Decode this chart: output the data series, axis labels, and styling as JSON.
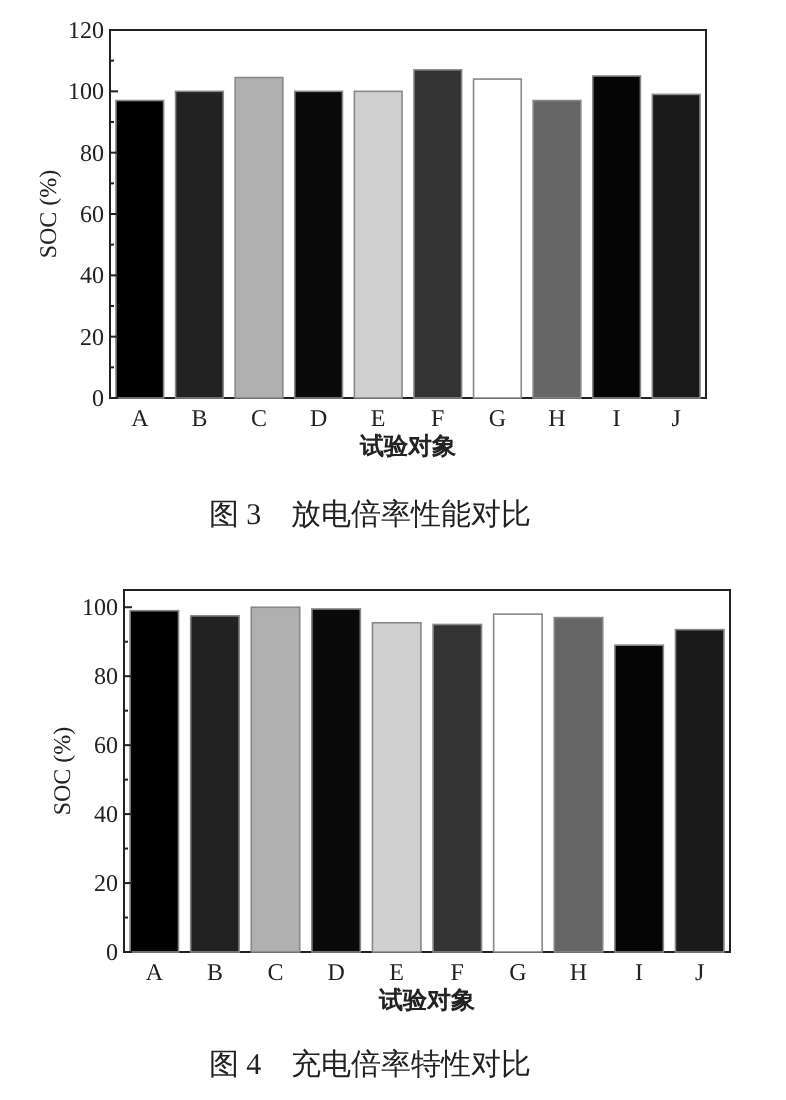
{
  "chart_data": [
    {
      "type": "bar",
      "title": "图 3　放电倍率性能对比",
      "xlabel": "试验对象",
      "ylabel": "SOC (%)",
      "categories": [
        "A",
        "B",
        "C",
        "D",
        "E",
        "F",
        "G",
        "H",
        "I",
        "J"
      ],
      "values": [
        97,
        100,
        104.5,
        100,
        100,
        107,
        104,
        97,
        105,
        99
      ],
      "colors": [
        "#000000",
        "#222222",
        "#b0b0b0",
        "#0a0a0a",
        "#d0d0d0",
        "#333333",
        "#ffffff",
        "#666666",
        "#050505",
        "#1a1a1a"
      ],
      "ylim": [
        0,
        120
      ],
      "yticks": [
        0,
        20,
        40,
        60,
        80,
        100,
        120
      ]
    },
    {
      "type": "bar",
      "title": "图 4　充电倍率特性对比",
      "xlabel": "试验对象",
      "ylabel": "SOC (%)",
      "categories": [
        "A",
        "B",
        "C",
        "D",
        "E",
        "F",
        "G",
        "H",
        "I",
        "J"
      ],
      "values": [
        99,
        97.5,
        100,
        99.5,
        95.5,
        95,
        98,
        97,
        89,
        93.5
      ],
      "colors": [
        "#000000",
        "#222222",
        "#b0b0b0",
        "#0a0a0a",
        "#d0d0d0",
        "#333333",
        "#ffffff",
        "#666666",
        "#050505",
        "#1a1a1a"
      ],
      "ylim": [
        0,
        105
      ],
      "yticks": [
        0,
        20,
        40,
        60,
        80,
        100
      ]
    }
  ]
}
